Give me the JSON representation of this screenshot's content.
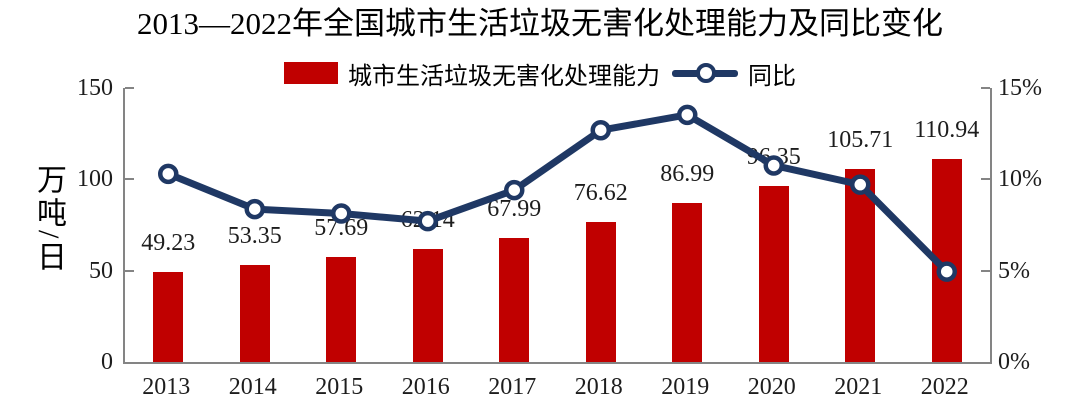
{
  "header": {
    "title": "2013—2022年全国城市生活垃圾无害化处理能力及同比变化"
  },
  "legend": {
    "bar_series_label": "城市生活垃圾无害化处理能力",
    "line_series_label": "同比"
  },
  "colors": {
    "bar": "#C00000",
    "line": "#1F3864",
    "marker_fill": "#FFFFFF",
    "axis": "#848484"
  },
  "chart_data": {
    "type": "bar",
    "subtype": "bar-line-combo",
    "title": "2013—2022年全国城市生活垃圾无害化处理能力及同比变化",
    "categories": [
      "2013",
      "2014",
      "2015",
      "2016",
      "2017",
      "2018",
      "2019",
      "2020",
      "2021",
      "2022"
    ],
    "series": [
      {
        "name": "城市生活垃圾无害化处理能力",
        "type": "bar",
        "axis": "left",
        "unit": "万吨/日",
        "values": [
          49.23,
          53.35,
          57.69,
          62.14,
          67.99,
          76.62,
          86.99,
          96.35,
          105.71,
          110.94
        ],
        "data_labels_shown": true
      },
      {
        "name": "同比",
        "type": "line",
        "axis": "right",
        "unit": "%",
        "values": [
          10.3,
          8.37,
          8.13,
          7.71,
          9.41,
          12.69,
          13.53,
          10.76,
          9.71,
          4.95
        ],
        "data_labels_shown": false
      }
    ],
    "left_axis": {
      "title": "万吨/日",
      "range": [
        0,
        150
      ],
      "ticks": [
        0,
        50,
        100,
        150
      ],
      "tick_labels": [
        "0",
        "50",
        "100",
        "150"
      ]
    },
    "right_axis": {
      "range": [
        0,
        15
      ],
      "ticks": [
        0,
        5,
        10,
        15
      ],
      "tick_labels": [
        "0%",
        "5%",
        "10%",
        "15%"
      ]
    },
    "grid": false,
    "legend_position": "top"
  }
}
